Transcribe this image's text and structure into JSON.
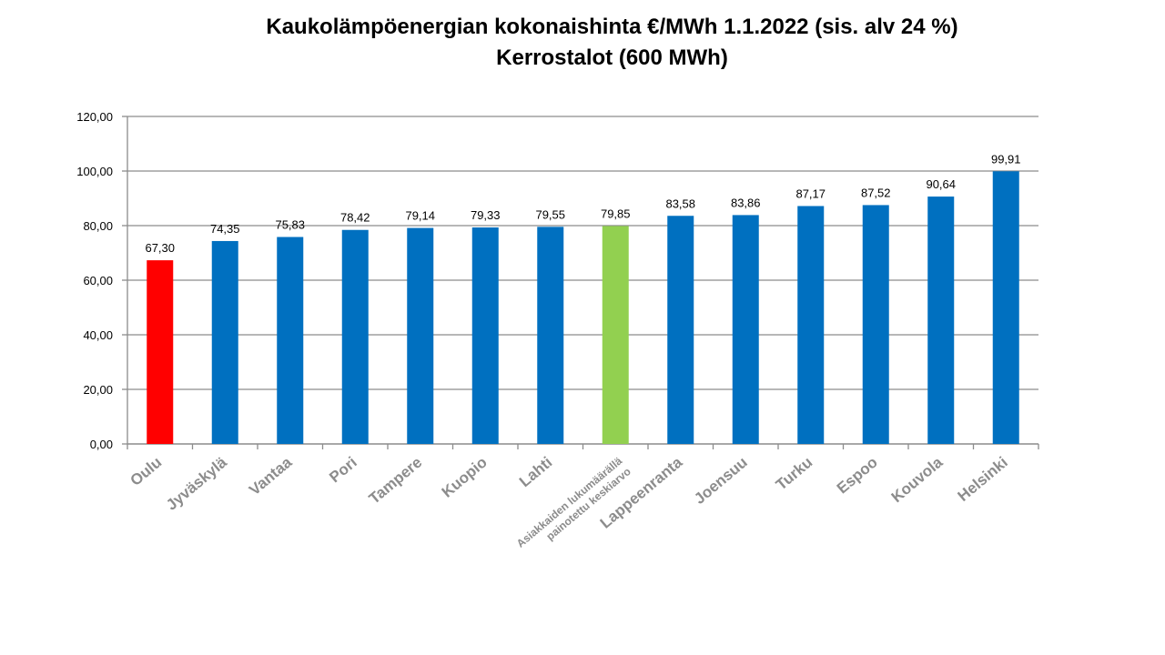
{
  "chart_data": {
    "type": "bar",
    "title": "Kaukolämpöenergian kokonaishinta €/MWh 1.1.2022 (sis. alv 24 %)",
    "subtitle": "Kerrostalot (600 MWh)",
    "categories": [
      "Oulu",
      "Jyväskylä",
      "Vantaa",
      "Pori",
      "Tampere",
      "Kuopio",
      "Lahti",
      "Asiakkaiden lukumäärällä painotettu keskiarvo",
      "Lappeenranta",
      "Joensuu",
      "Turku",
      "Espoo",
      "Kouvola",
      "Helsinki"
    ],
    "category_label_lines": [
      [
        "Oulu"
      ],
      [
        "Jyväskylä"
      ],
      [
        "Vantaa"
      ],
      [
        "Pori"
      ],
      [
        "Tampere"
      ],
      [
        "Kuopio"
      ],
      [
        "Lahti"
      ],
      [
        "Asiakkaiden lukumäärällä",
        "painotettu keskiarvo"
      ],
      [
        "Lappeenranta"
      ],
      [
        "Joensuu"
      ],
      [
        "Turku"
      ],
      [
        "Espoo"
      ],
      [
        "Kouvola"
      ],
      [
        "Helsinki"
      ]
    ],
    "values": [
      67.3,
      74.35,
      75.83,
      78.42,
      79.14,
      79.33,
      79.55,
      79.85,
      83.58,
      83.86,
      87.17,
      87.52,
      90.64,
      99.91
    ],
    "value_labels": [
      "67,30",
      "74,35",
      "75,83",
      "78,42",
      "79,14",
      "79,33",
      "79,55",
      "79,85",
      "83,58",
      "83,86",
      "87,17",
      "87,52",
      "90,64",
      "99,91"
    ],
    "bar_colors": [
      "#ff0000",
      "#0070c0",
      "#0070c0",
      "#0070c0",
      "#0070c0",
      "#0070c0",
      "#0070c0",
      "#92d050",
      "#0070c0",
      "#0070c0",
      "#0070c0",
      "#0070c0",
      "#0070c0",
      "#0070c0"
    ],
    "ylim": [
      0,
      120
    ],
    "yticks": [
      "0,00",
      "20,00",
      "40,00",
      "60,00",
      "80,00",
      "100,00",
      "120,00"
    ],
    "grid": true,
    "legend": "none",
    "xlabel": "",
    "ylabel": ""
  }
}
